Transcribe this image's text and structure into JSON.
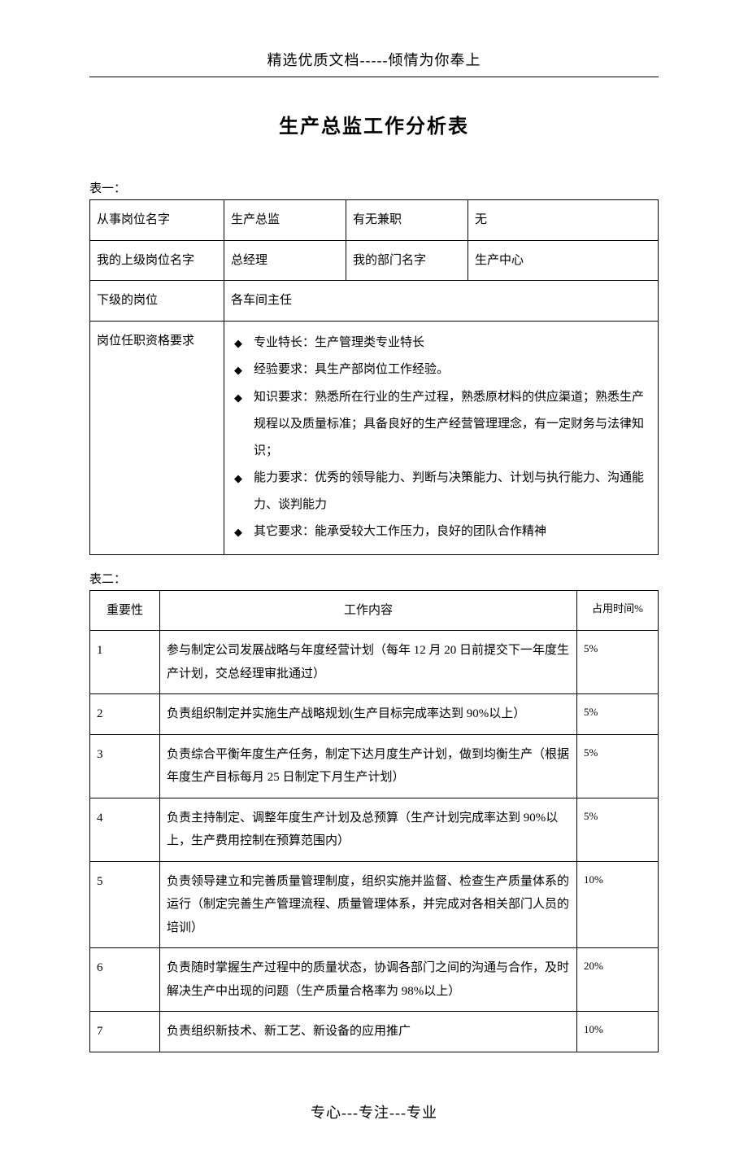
{
  "header": "精选优质文档-----倾情为你奉上",
  "title": "生产总监工作分析表",
  "table1_label": "表一：",
  "table1": {
    "r1c1": "从事岗位名字",
    "r1c2": "生产总监",
    "r1c3": "有无兼职",
    "r1c4": "无",
    "r2c1": "我的上级岗位名字",
    "r2c2": "总经理",
    "r2c3": "我的部门名字",
    "r2c4": "生产中心",
    "r3c1": "下级的岗位",
    "r3c2": "各车间主任",
    "r4c1": "岗位任职资格要求",
    "bullets": [
      "专业特长：生产管理类专业特长",
      "经验要求：具生产部岗位工作经验。",
      "知识要求：熟悉所在行业的生产过程，熟悉原材料的供应渠道；熟悉生产规程以及质量标准；具备良好的生产经营管理理念，有一定财务与法律知识；",
      "能力要求：优秀的领导能力、判断与决策能力、计划与执行能力、沟通能力、谈判能力",
      "其它要求：能承受较大工作压力，良好的团队合作精神"
    ]
  },
  "table2_label": "表二：",
  "table2": {
    "headers": {
      "importance": "重要性",
      "content": "工作内容",
      "time": "占用时间%"
    },
    "rows": [
      {
        "imp": "1",
        "content": "参与制定公司发展战略与年度经营计划（每年 12 月 20 日前提交下一年度生产计划，交总经理审批通过）",
        "time": "5%"
      },
      {
        "imp": "2",
        "content": "负责组织制定并实施生产战略规划(生产目标完成率达到 90%以上）",
        "time": "5%"
      },
      {
        "imp": "3",
        "content": "负责综合平衡年度生产任务，制定下达月度生产计划，做到均衡生产（根据年度生产目标每月 25 日制定下月生产计划）",
        "time": "5%"
      },
      {
        "imp": "4",
        "content": "负责主持制定、调整年度生产计划及总预算（生产计划完成率达到 90%以上，生产费用控制在预算范围内）",
        "time": "5%"
      },
      {
        "imp": "5",
        "content": "负责领导建立和完善质量管理制度，组织实施并监督、检查生产质量体系的运行（制定完善生产管理流程、质量管理体系，并完成对各相关部门人员的培训）",
        "time": "10%"
      },
      {
        "imp": "6",
        "content": "负责随时掌握生产过程中的质量状态，协调各部门之间的沟通与合作，及时解决生产中出现的问题（生产质量合格率为 98%以上）",
        "time": "20%"
      },
      {
        "imp": "7",
        "content": "负责组织新技术、新工艺、新设备的应用推广",
        "time": "10%"
      }
    ]
  },
  "footer": "专心---专注---专业"
}
